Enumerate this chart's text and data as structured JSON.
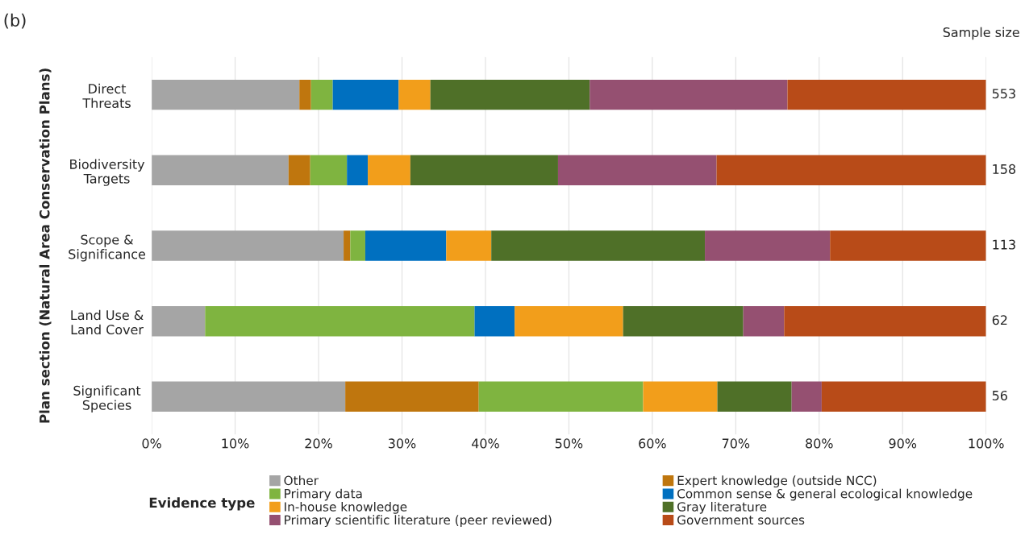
{
  "chart_data": {
    "type": "bar",
    "orientation": "horizontal",
    "stacked": true,
    "categories": [
      "Direct\nThreats",
      "Biodiversity\nTargets",
      "Scope &\nSignificance",
      "Land Use &\nLand Cover",
      "Significant\nSpecies"
    ],
    "ylabel": "Plan section (Natural Area Conservation Plans)",
    "legend_title": "Evidence type",
    "xlim": [
      0,
      100
    ],
    "xticks": [
      {
        "value": 0,
        "label": "0%"
      },
      {
        "value": 10,
        "label": "10%"
      },
      {
        "value": 20,
        "label": "20%"
      },
      {
        "value": 30,
        "label": "30%"
      },
      {
        "value": 40,
        "label": "40%"
      },
      {
        "value": 50,
        "label": "50%"
      },
      {
        "value": 60,
        "label": "60%"
      },
      {
        "value": 70,
        "label": "70%"
      },
      {
        "value": 80,
        "label": "80%"
      },
      {
        "value": 90,
        "label": "90%"
      },
      {
        "value": 100,
        "label": "100%"
      }
    ],
    "grid": "x",
    "legend": "bottom",
    "series": [
      {
        "name": "Other",
        "color": "#a5a5a5",
        "values": [
          17.7,
          16.4,
          23.0,
          6.4,
          23.2
        ]
      },
      {
        "name": "Expert knowledge (outside NCC)",
        "color": "#bf760e",
        "values": [
          1.4,
          2.6,
          0.8,
          0,
          16.0
        ]
      },
      {
        "name": "Primary data",
        "color": "#7fb440",
        "values": [
          2.6,
          4.4,
          1.8,
          32.3,
          19.7
        ]
      },
      {
        "name": "Common sense & general ecological knowledge",
        "color": "#0070c0",
        "values": [
          7.9,
          2.5,
          9.7,
          4.8,
          0
        ]
      },
      {
        "name": "In-house knowledge",
        "color": "#f29e1b",
        "values": [
          3.8,
          5.1,
          5.4,
          13.0,
          8.9
        ]
      },
      {
        "name": "Gray literature",
        "color": "#4f7028",
        "values": [
          19.1,
          17.7,
          25.6,
          14.4,
          8.9
        ]
      },
      {
        "name": "Primary scientific literature (peer reviewed)",
        "color": "#955071",
        "values": [
          23.7,
          19.0,
          15.0,
          4.9,
          3.6
        ]
      },
      {
        "name": "Government sources",
        "color": "#b84b18",
        "values": [
          23.8,
          32.3,
          18.7,
          24.2,
          19.7
        ]
      }
    ],
    "annotations": [
      "(b)",
      "Sample size",
      "553",
      "158",
      "113",
      "62",
      "56"
    ]
  }
}
